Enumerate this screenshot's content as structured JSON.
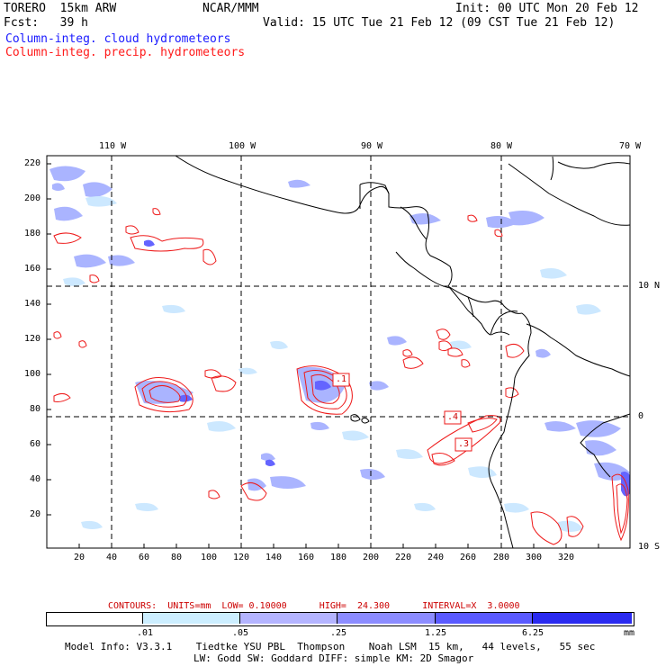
{
  "header": {
    "model": "TORERO  15km ARW",
    "org": "NCAR/MMM",
    "init": "Init: 00 UTC Mon 20 Feb 12",
    "fcst": "Fcst:   39 h",
    "valid": "Valid: 15 UTC Tue 21 Feb 12 (09 CST Tue 21 Feb 12)",
    "field1": "Column-integ. cloud hydrometeors",
    "field2": "Column-integ. precip. hydrometeors",
    "field1_color": "#1a1aff",
    "field2_color": "#ff1a1a"
  },
  "axes": {
    "top_lon": [
      "110 W",
      "100 W",
      "90 W",
      "80 W",
      "70 W"
    ],
    "right_lat": [
      "10 N",
      "0",
      "10 S"
    ],
    "left_y": [
      "220",
      "200",
      "180",
      "160",
      "140",
      "120",
      "100",
      "80",
      "60",
      "40",
      "20"
    ],
    "bottom_x": [
      "20",
      "40",
      "60",
      "80",
      "100",
      "120",
      "140",
      "160",
      "180",
      "200",
      "220",
      "240",
      "260",
      "280",
      "300",
      "320"
    ]
  },
  "max_labels": [
    ".1",
    ".4",
    ".3"
  ],
  "contour_info": "CONTOURS:  UNITS=mm  LOW= 0.10000      HIGH=  24.300      INTERVAL=X  3.0000",
  "colorbar": {
    "labels": [
      ".01",
      ".05",
      ".25",
      "1.25",
      "6.25"
    ],
    "unit": "mm",
    "colors": [
      "#ffffff",
      "#cceeff",
      "#b4b4ff",
      "#8c8cff",
      "#5a5aff",
      "#2a2af0"
    ]
  },
  "footer": {
    "line1": "Model Info: V3.3.1    Tiedtke YSU PBL  Thompson    Noah LSM  15 km,   44 levels,   55 sec",
    "line2": "LW: Godd SW: Goddard DIFF: simple KM: 2D Smagor"
  }
}
